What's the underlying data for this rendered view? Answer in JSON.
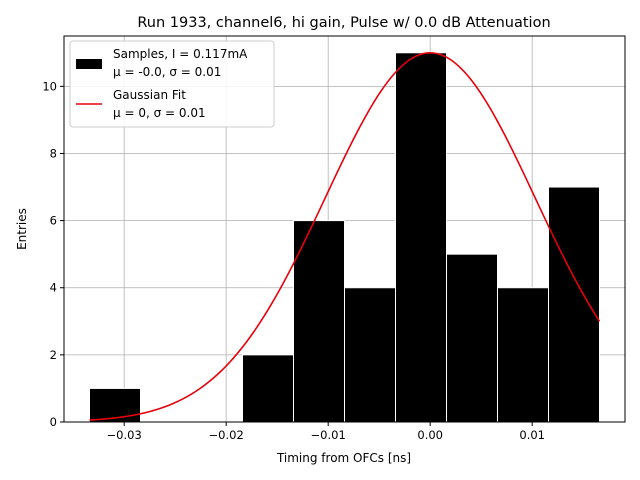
{
  "chart_data": {
    "type": "bar",
    "title": "Run 1933, channel6, hi gain, Pulse w/ 0.0 dB Attenuation",
    "xlabel": "Timing from OFCs [ns]",
    "ylabel": "Entries",
    "xlim": [
      -0.0359,
      0.0191
    ],
    "ylim": [
      0,
      11.5
    ],
    "grid": true,
    "x_ticks": [
      {
        "value": -0.03,
        "label": "−0.03"
      },
      {
        "value": -0.02,
        "label": "−0.02"
      },
      {
        "value": -0.01,
        "label": "−0.01"
      },
      {
        "value": 0.0,
        "label": "0.00"
      },
      {
        "value": 0.01,
        "label": "0.01"
      }
    ],
    "y_ticks": [
      {
        "value": 0,
        "label": "0"
      },
      {
        "value": 2,
        "label": "2"
      },
      {
        "value": 4,
        "label": "4"
      },
      {
        "value": 6,
        "label": "6"
      },
      {
        "value": 8,
        "label": "8"
      },
      {
        "value": 10,
        "label": "10"
      }
    ],
    "histogram": {
      "name": "Samples",
      "color": "#000000",
      "edge_color": "#ffffff",
      "bin_edges": [
        -0.0334,
        -0.0284,
        -0.0234,
        -0.0184,
        -0.0134,
        -0.0084,
        -0.0034,
        0.0016,
        0.0066,
        0.0116,
        0.0166
      ],
      "counts": [
        1,
        0,
        0,
        2,
        6,
        4,
        11,
        5,
        4,
        7
      ]
    },
    "gaussian_fit": {
      "name": "Gaussian Fit",
      "color": "#e8000b",
      "amplitude": 11,
      "mean": 0.0,
      "sigma": 0.0103,
      "x_range": [
        -0.0334,
        0.0166
      ]
    },
    "legend": {
      "position": "top-left",
      "entries": [
        {
          "kind": "patch",
          "color": "#000000",
          "line1": "Samples, I = 0.117mA",
          "line2": "μ = -0.0, σ = 0.01"
        },
        {
          "kind": "line",
          "color": "#e8000b",
          "line1": "Gaussian Fit",
          "line2": "μ = 0, σ = 0.01"
        }
      ]
    }
  }
}
